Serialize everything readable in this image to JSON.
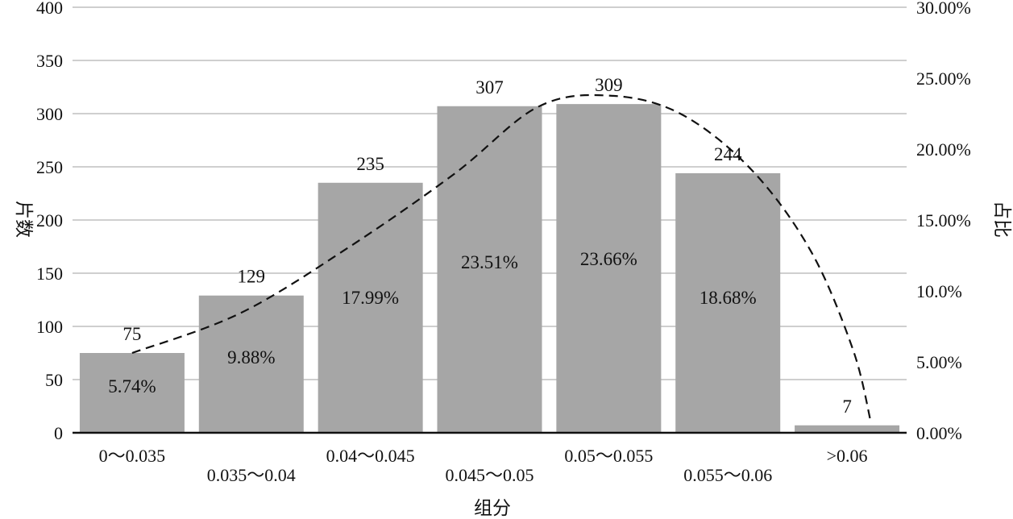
{
  "chart_data": {
    "type": "bar",
    "title": "",
    "xlabel": "组分",
    "ylabel": "片数",
    "y2label": "占比",
    "categories": [
      "0～0.035",
      "0.035～0.04",
      "0.04～0.045",
      "0.045～0.05",
      "0.05～0.055",
      "0.055～0.06",
      ">0.06"
    ],
    "values": [
      75,
      129,
      235,
      307,
      309,
      244,
      7
    ],
    "value_labels": [
      "75",
      "129",
      "235",
      "307",
      "309",
      "244",
      "7"
    ],
    "percent_labels": [
      "5.74%",
      "9.88%",
      "17.99%",
      "23.51%",
      "23.66%",
      "18.68%",
      ""
    ],
    "ylim": [
      0,
      400
    ],
    "yticks": [
      0,
      50,
      100,
      150,
      200,
      250,
      300,
      350,
      400
    ],
    "ytick_labels": [
      "0",
      "50",
      "100",
      "150",
      "200",
      "250",
      "300",
      "350",
      "400"
    ],
    "y2lim": [
      0,
      30
    ],
    "y2ticks": [
      0,
      5,
      10,
      15,
      20,
      25,
      30
    ],
    "y2tick_labels": [
      "0.00%",
      "5.00%",
      "10.0%",
      "15.00%",
      "20.00%",
      "25.00%",
      "30.00%"
    ],
    "trend_line": {
      "style": "dashed",
      "color": "#111111",
      "points": [
        {
          "x": 0.0,
          "y": 75
        },
        {
          "x": 0.9,
          "y": 112
        },
        {
          "x": 1.8,
          "y": 173
        },
        {
          "x": 2.7,
          "y": 243
        },
        {
          "x": 3.4,
          "y": 306
        },
        {
          "x": 4.0,
          "y": 317
        },
        {
          "x": 4.6,
          "y": 300
        },
        {
          "x": 5.2,
          "y": 247
        },
        {
          "x": 5.7,
          "y": 170
        },
        {
          "x": 6.05,
          "y": 78
        },
        {
          "x": 6.2,
          "y": 10
        }
      ]
    },
    "grid": true,
    "colors": {
      "bar": "#a6a6a6",
      "grid": "#bfbfbf",
      "axis": "#111111",
      "text": "#111111"
    }
  }
}
